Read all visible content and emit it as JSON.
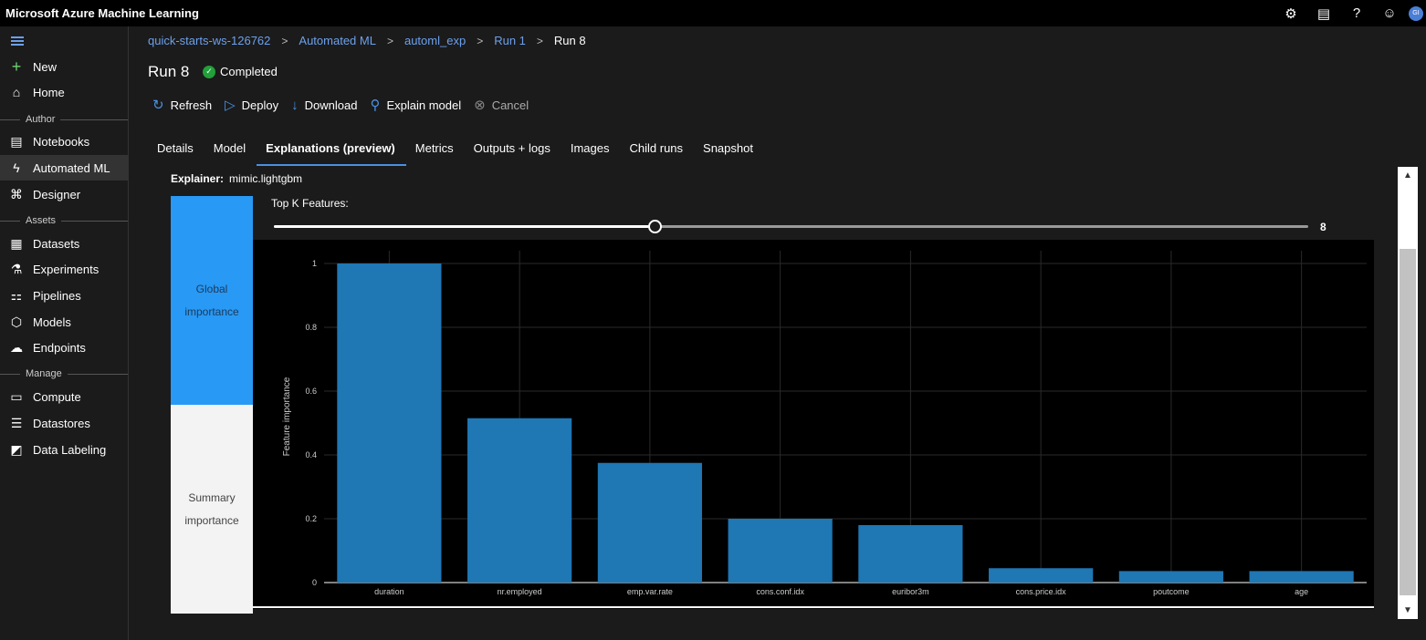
{
  "app": {
    "title": "Microsoft Azure Machine Learning",
    "avatar_initials": "GI"
  },
  "top_icons": [
    "gear-icon",
    "feedback-icon",
    "help-icon",
    "smiley-icon"
  ],
  "sidebar": {
    "new_label": "New",
    "home_label": "Home",
    "sections": {
      "author": "Author",
      "assets": "Assets",
      "manage": "Manage"
    },
    "items": {
      "notebooks": "Notebooks",
      "automated_ml": "Automated ML",
      "designer": "Designer",
      "datasets": "Datasets",
      "experiments": "Experiments",
      "pipelines": "Pipelines",
      "models": "Models",
      "endpoints": "Endpoints",
      "compute": "Compute",
      "datastores": "Datastores",
      "data_labeling": "Data Labeling"
    }
  },
  "breadcrumb": {
    "workspace": "quick-starts-ws-126762",
    "automated_ml": "Automated ML",
    "experiment": "automl_exp",
    "run": "Run 1",
    "current": "Run 8"
  },
  "run": {
    "title": "Run 8",
    "status": "Completed"
  },
  "toolbar": {
    "refresh": "Refresh",
    "deploy": "Deploy",
    "download": "Download",
    "explain": "Explain model",
    "cancel": "Cancel"
  },
  "tabs": [
    "Details",
    "Model",
    "Explanations (preview)",
    "Metrics",
    "Outputs + logs",
    "Images",
    "Child runs",
    "Snapshot"
  ],
  "active_tab": 2,
  "explainer": {
    "label": "Explainer:",
    "value": "mimic.lightgbm"
  },
  "side_tabs": {
    "global": "Global importance",
    "summary": "Summary importance"
  },
  "topk": {
    "label": "Top K Features:",
    "value": "8",
    "fraction": 0.368
  },
  "colors": {
    "bar": "#1f77b4",
    "accent": "#2899f5",
    "link": "#6ca0ec"
  },
  "chart_data": {
    "type": "bar",
    "categories": [
      "duration",
      "nr.employed",
      "emp.var.rate",
      "cons.conf.idx",
      "euribor3m",
      "cons.price.idx",
      "poutcome",
      "age"
    ],
    "values": [
      1.0,
      0.515,
      0.375,
      0.2,
      0.18,
      0.045,
      0.036,
      0.036
    ],
    "xlabel": "",
    "ylabel": "Feature importance",
    "ylim": [
      0,
      1.04
    ],
    "yticks": [
      0,
      0.2,
      0.4,
      0.6,
      0.8,
      1
    ],
    "ytick_labels": [
      "0",
      "0.2",
      "0.4",
      "0.6",
      "0.8",
      "1"
    ],
    "grid": true
  }
}
